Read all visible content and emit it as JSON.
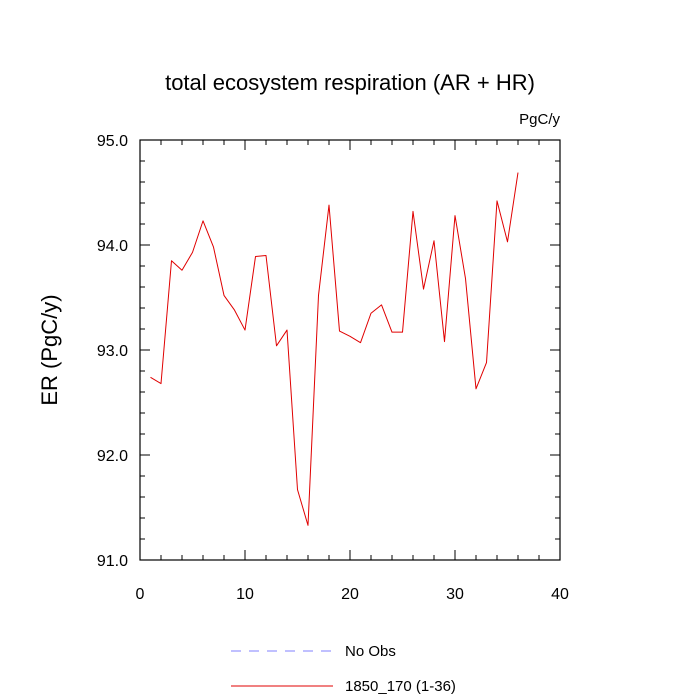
{
  "chart_data": {
    "type": "line",
    "title": "total ecosystem respiration (AR + HR)",
    "units": "PgC/y",
    "ylabel": "ER  (PgC/y)",
    "xlabel": "",
    "xlim": [
      0,
      40
    ],
    "ylim": [
      91.0,
      95.0
    ],
    "xticks": [
      0,
      10,
      20,
      30,
      40
    ],
    "xtick_labels": [
      "0",
      "10",
      "20",
      "30",
      "40"
    ],
    "yticks": [
      91.0,
      92.0,
      93.0,
      94.0,
      95.0
    ],
    "ytick_labels": [
      "91.0",
      "92.0",
      "93.0",
      "94.0",
      "95.0"
    ],
    "grid": false,
    "legend_position": "bottom-center",
    "series": [
      {
        "name": "No Obs",
        "color": "#8080ff",
        "dash": "dashed",
        "x": [],
        "values": []
      },
      {
        "name": "1850_170 (1-36)",
        "color": "#e00000",
        "dash": "solid",
        "x": [
          1,
          2,
          3,
          4,
          5,
          6,
          7,
          8,
          9,
          10,
          11,
          12,
          13,
          14,
          15,
          16,
          17,
          18,
          19,
          20,
          21,
          22,
          23,
          24,
          25,
          26,
          27,
          28,
          29,
          30,
          31,
          32,
          33,
          34,
          35,
          36
        ],
        "values": [
          92.74,
          92.68,
          93.85,
          93.76,
          93.93,
          94.23,
          93.98,
          93.52,
          93.38,
          93.19,
          93.89,
          93.9,
          93.04,
          93.19,
          91.67,
          91.33,
          93.52,
          94.38,
          93.18,
          93.13,
          93.07,
          93.35,
          93.43,
          93.17,
          93.17,
          94.32,
          93.58,
          94.04,
          93.08,
          94.28,
          93.68,
          92.63,
          92.88,
          94.42,
          94.03,
          94.69
        ]
      }
    ]
  }
}
